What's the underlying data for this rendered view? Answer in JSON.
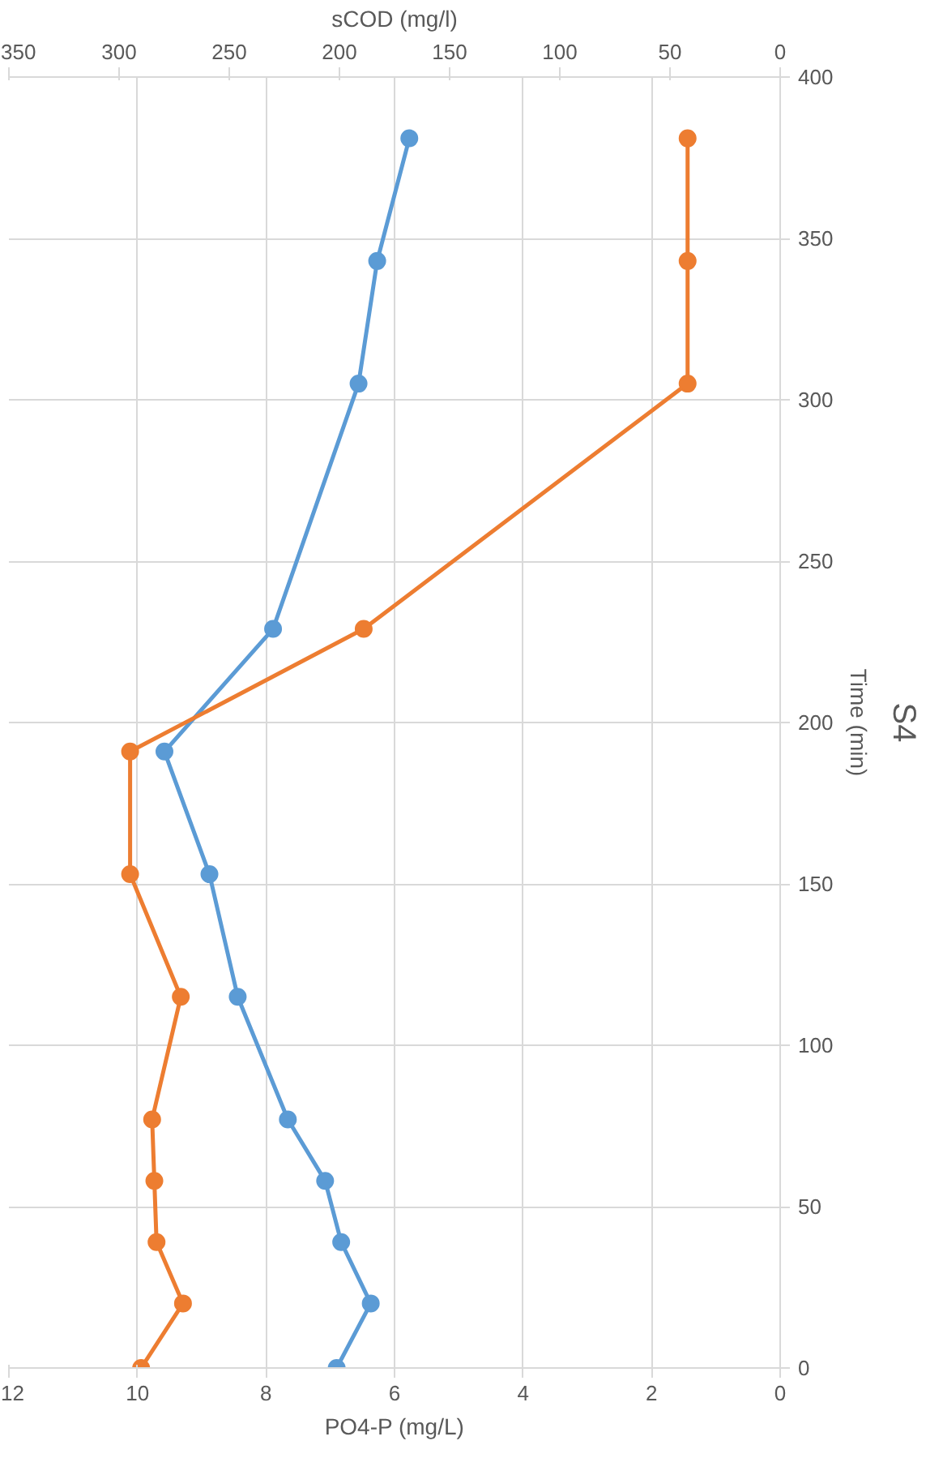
{
  "chart_data": {
    "type": "line",
    "title": "S4",
    "xlabel": "PO4-P (mg/L)",
    "x2label": "sCOD (mg/l)",
    "ylabel": "Time (min)",
    "series": [
      {
        "color": "#5b9bd5",
        "x": [
          6.9,
          6.37,
          6.83,
          7.08,
          7.66,
          8.44,
          8.88,
          9.58,
          7.89,
          6.56,
          6.27,
          5.77
        ],
        "values": [
          0,
          20,
          39,
          58,
          77,
          115,
          153,
          191,
          229,
          305,
          343,
          381
        ]
      },
      {
        "color": "#ed7d31",
        "axis": "x2",
        "x": [
          290,
          271,
          283,
          284,
          285,
          272,
          295,
          295,
          189,
          42,
          42,
          42
        ],
        "values": [
          0,
          20,
          39,
          58,
          77,
          115,
          153,
          191,
          229,
          305,
          343,
          381
        ]
      }
    ],
    "xlim": [
      12,
      0
    ],
    "xticks": [
      0,
      2,
      4,
      6,
      8,
      10,
      12
    ],
    "x2lim": [
      350,
      0
    ],
    "x2ticks": [
      0,
      50,
      100,
      150,
      200,
      250,
      300,
      350
    ],
    "ylim": [
      0,
      400
    ],
    "yticks": [
      0,
      50,
      100,
      150,
      200,
      250,
      300,
      350,
      400
    ],
    "grid": true,
    "marker": "circle",
    "line_style": "solid"
  }
}
